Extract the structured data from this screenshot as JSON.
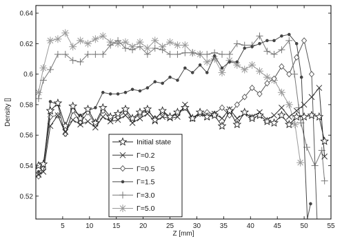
{
  "chart_data": {
    "type": "line",
    "title": "",
    "xlabel": "Z [mm]",
    "ylabel": "Density []",
    "xlim": [
      0,
      55
    ],
    "ylim": [
      0.505,
      0.645
    ],
    "xticks": [
      5,
      10,
      15,
      20,
      25,
      30,
      35,
      40,
      45,
      50,
      55
    ],
    "yticks": [
      0.52,
      0.54,
      0.56,
      0.58,
      0.6,
      0.62,
      0.64
    ],
    "ytick_labels": [
      "0.52",
      "0.54",
      "0.56",
      "0.58",
      "0.6",
      "0.62",
      "0.64"
    ],
    "grid": false,
    "legend_position": "bottom-center",
    "series": [
      {
        "name": "Initial state",
        "marker": "star",
        "color": "#222222",
        "x": [
          0.5,
          1.4,
          2.7,
          4.1,
          5.5,
          6.9,
          8.3,
          9.7,
          11.1,
          12.5,
          13.9,
          15.3,
          16.7,
          18.0,
          19.4,
          20.8,
          22.2,
          23.6,
          25.0,
          26.4,
          27.8,
          29.2,
          30.6,
          31.9,
          33.3,
          34.7,
          36.1,
          37.5,
          38.9,
          40.3,
          41.7,
          43.1,
          44.4,
          45.8,
          47.2,
          48.6,
          50.0,
          51.4,
          52.8,
          53.8
        ],
        "y": [
          0.54,
          0.541,
          0.576,
          0.581,
          0.566,
          0.579,
          0.571,
          0.577,
          0.568,
          0.578,
          0.572,
          0.574,
          0.577,
          0.571,
          0.575,
          0.577,
          0.57,
          0.576,
          0.572,
          0.575,
          0.578,
          0.571,
          0.575,
          0.572,
          0.573,
          0.566,
          0.576,
          0.567,
          0.575,
          0.571,
          0.573,
          0.569,
          0.568,
          0.573,
          0.567,
          0.572,
          0.572,
          0.573,
          0.572,
          0.556
        ]
      },
      {
        "name": "Γ=0.2",
        "marker": "x",
        "color": "#333333",
        "x": [
          0.5,
          1.4,
          2.7,
          4.1,
          5.5,
          6.9,
          8.3,
          9.7,
          11.1,
          12.5,
          13.9,
          15.3,
          16.7,
          18.0,
          19.4,
          20.8,
          22.2,
          23.6,
          25.0,
          26.4,
          27.8,
          29.2,
          30.6,
          31.9,
          33.3,
          34.7,
          36.1,
          37.5,
          38.9,
          40.3,
          41.7,
          43.1,
          44.4,
          45.8,
          47.2,
          48.6,
          50.0,
          51.4,
          52.8,
          53.8
        ],
        "y": [
          0.534,
          0.536,
          0.566,
          0.573,
          0.562,
          0.57,
          0.567,
          0.569,
          0.565,
          0.572,
          0.569,
          0.57,
          0.573,
          0.568,
          0.571,
          0.574,
          0.569,
          0.572,
          0.571,
          0.572,
          0.58,
          0.571,
          0.574,
          0.572,
          0.574,
          0.571,
          0.577,
          0.571,
          0.574,
          0.572,
          0.575,
          0.57,
          0.573,
          0.578,
          0.572,
          0.576,
          0.58,
          0.585,
          0.591,
          0.546
        ]
      },
      {
        "name": "Γ=0.5",
        "marker": "diamond",
        "color": "#555555",
        "x": [
          0.5,
          1.4,
          2.7,
          4.1,
          5.5,
          6.9,
          8.3,
          9.7,
          11.1,
          12.5,
          13.9,
          15.3,
          16.7,
          18.0,
          19.4,
          20.8,
          22.2,
          23.6,
          25.0,
          26.4,
          27.8,
          29.2,
          30.6,
          31.9,
          33.3,
          34.7,
          36.1,
          37.5,
          38.9,
          40.3,
          41.7,
          43.1,
          44.4,
          45.8,
          47.2,
          48.6,
          50.0,
          51.4,
          52.4
        ],
        "y": [
          0.533,
          0.538,
          0.572,
          0.573,
          0.561,
          0.576,
          0.568,
          0.575,
          0.567,
          0.576,
          0.571,
          0.572,
          0.575,
          0.57,
          0.574,
          0.576,
          0.571,
          0.575,
          0.572,
          0.574,
          0.578,
          0.571,
          0.574,
          0.575,
          0.574,
          0.578,
          0.573,
          0.58,
          0.585,
          0.591,
          0.587,
          0.594,
          0.597,
          0.605,
          0.6,
          0.611,
          0.622,
          0.6,
          0.505
        ]
      },
      {
        "name": "Γ=1.5",
        "marker": "dot",
        "color": "#444444",
        "x": [
          0.5,
          1.4,
          2.7,
          4.1,
          5.5,
          6.9,
          8.3,
          9.7,
          11.1,
          12.5,
          13.9,
          15.3,
          16.7,
          18.0,
          19.4,
          20.8,
          22.2,
          23.6,
          25.0,
          26.4,
          27.8,
          29.2,
          30.6,
          31.9,
          33.3,
          34.7,
          36.1,
          37.5,
          38.9,
          40.3,
          41.7,
          43.1,
          44.4,
          45.8,
          47.2,
          48.6,
          49.5,
          50.6,
          51.2
        ],
        "y": [
          0.536,
          0.538,
          0.582,
          0.58,
          0.56,
          0.576,
          0.573,
          0.576,
          0.578,
          0.588,
          0.587,
          0.587,
          0.588,
          0.59,
          0.589,
          0.591,
          0.595,
          0.594,
          0.598,
          0.596,
          0.604,
          0.601,
          0.606,
          0.601,
          0.612,
          0.604,
          0.608,
          0.608,
          0.617,
          0.618,
          0.62,
          0.622,
          0.622,
          0.625,
          0.626,
          0.62,
          0.598,
          0.505,
          0.515
        ]
      },
      {
        "name": "Γ=3.0",
        "marker": "plus",
        "color": "#777777",
        "x": [
          0.5,
          1.4,
          2.7,
          4.1,
          5.5,
          6.9,
          8.3,
          9.7,
          11.1,
          12.5,
          13.9,
          15.3,
          16.7,
          18.0,
          19.4,
          20.8,
          22.2,
          23.6,
          25.0,
          26.4,
          27.8,
          29.2,
          30.6,
          31.9,
          33.3,
          34.7,
          36.1,
          37.5,
          38.9,
          40.3,
          41.7,
          43.1,
          44.4,
          45.8,
          47.2,
          48.2,
          49.0,
          49.4,
          50.5,
          52.0,
          53.3,
          53.8
        ],
        "y": [
          0.584,
          0.596,
          0.603,
          0.613,
          0.613,
          0.609,
          0.608,
          0.613,
          0.613,
          0.613,
          0.619,
          0.622,
          0.617,
          0.616,
          0.618,
          0.613,
          0.617,
          0.616,
          0.613,
          0.613,
          0.614,
          0.614,
          0.613,
          0.613,
          0.614,
          0.613,
          0.613,
          0.62,
          0.619,
          0.619,
          0.625,
          0.615,
          0.613,
          0.616,
          0.622,
          0.6,
          0.578,
          0.568,
          0.552,
          0.54,
          0.55,
          0.53
        ]
      },
      {
        "name": "Γ=5.0",
        "marker": "asterisk",
        "color": "#999999",
        "x": [
          0.5,
          1.4,
          2.7,
          4.1,
          5.5,
          6.9,
          8.3,
          9.7,
          11.1,
          12.5,
          13.9,
          15.3,
          16.7,
          18.0,
          19.4,
          20.8,
          22.2,
          23.6,
          25.0,
          26.4,
          27.8,
          29.2,
          30.6,
          31.9,
          33.3,
          34.7,
          36.1,
          37.5,
          38.9,
          40.3,
          41.7,
          43.1,
          44.4,
          45.8,
          47.2,
          48.3,
          49.3
        ],
        "y": [
          0.588,
          0.604,
          0.622,
          0.623,
          0.627,
          0.618,
          0.622,
          0.62,
          0.623,
          0.625,
          0.621,
          0.62,
          0.621,
          0.618,
          0.621,
          0.617,
          0.622,
          0.618,
          0.621,
          0.619,
          0.619,
          0.614,
          0.613,
          0.608,
          0.61,
          0.601,
          0.609,
          0.606,
          0.603,
          0.606,
          0.602,
          0.598,
          0.596,
          0.588,
          0.58,
          0.567,
          0.542
        ]
      }
    ]
  }
}
